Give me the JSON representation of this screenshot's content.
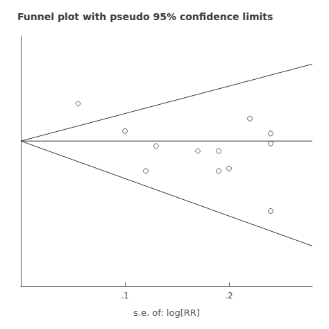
{
  "chart_data": {
    "type": "scatter",
    "title": "Funnel plot with pseudo 95% confidence limits",
    "xlabel": "s.e. of: log[RR]",
    "xlim": [
      0,
      0.28
    ],
    "ylim": [
      -0.55,
      0.45
    ],
    "xticks": [
      {
        "value": 0.1,
        "label": ".1"
      },
      {
        "value": 0.2,
        "label": ".2"
      }
    ],
    "yticks": [],
    "tick_labels": "x",
    "grid": false,
    "series": [
      {
        "type": "line",
        "color": "#333333",
        "x": [
          0,
          0.28
        ],
        "values": [
          0.03,
          0.338
        ]
      },
      {
        "type": "line",
        "color": "#333333",
        "x": [
          0,
          0.28
        ],
        "values": [
          0.03,
          -0.39
        ]
      },
      {
        "type": "line",
        "color": "#333333",
        "x": [
          0,
          0.28
        ],
        "values": [
          0.03,
          0.03
        ]
      },
      {
        "type": "scatter",
        "marker": "circle",
        "color": "#333333",
        "x": [
          0.1,
          0.12,
          0.13,
          0.19,
          0.19,
          0.22,
          0.24,
          0.24,
          0.24,
          0.2
        ],
        "values": [
          0.07,
          -0.09,
          0.01,
          -0.01,
          -0.09,
          0.12,
          0.06,
          0.02,
          -0.25,
          -0.08
        ]
      },
      {
        "type": "scatter",
        "marker": "diamond",
        "color": "#333333",
        "x": [
          0.055,
          0.17
        ],
        "values": [
          0.18,
          -0.01
        ]
      }
    ]
  }
}
